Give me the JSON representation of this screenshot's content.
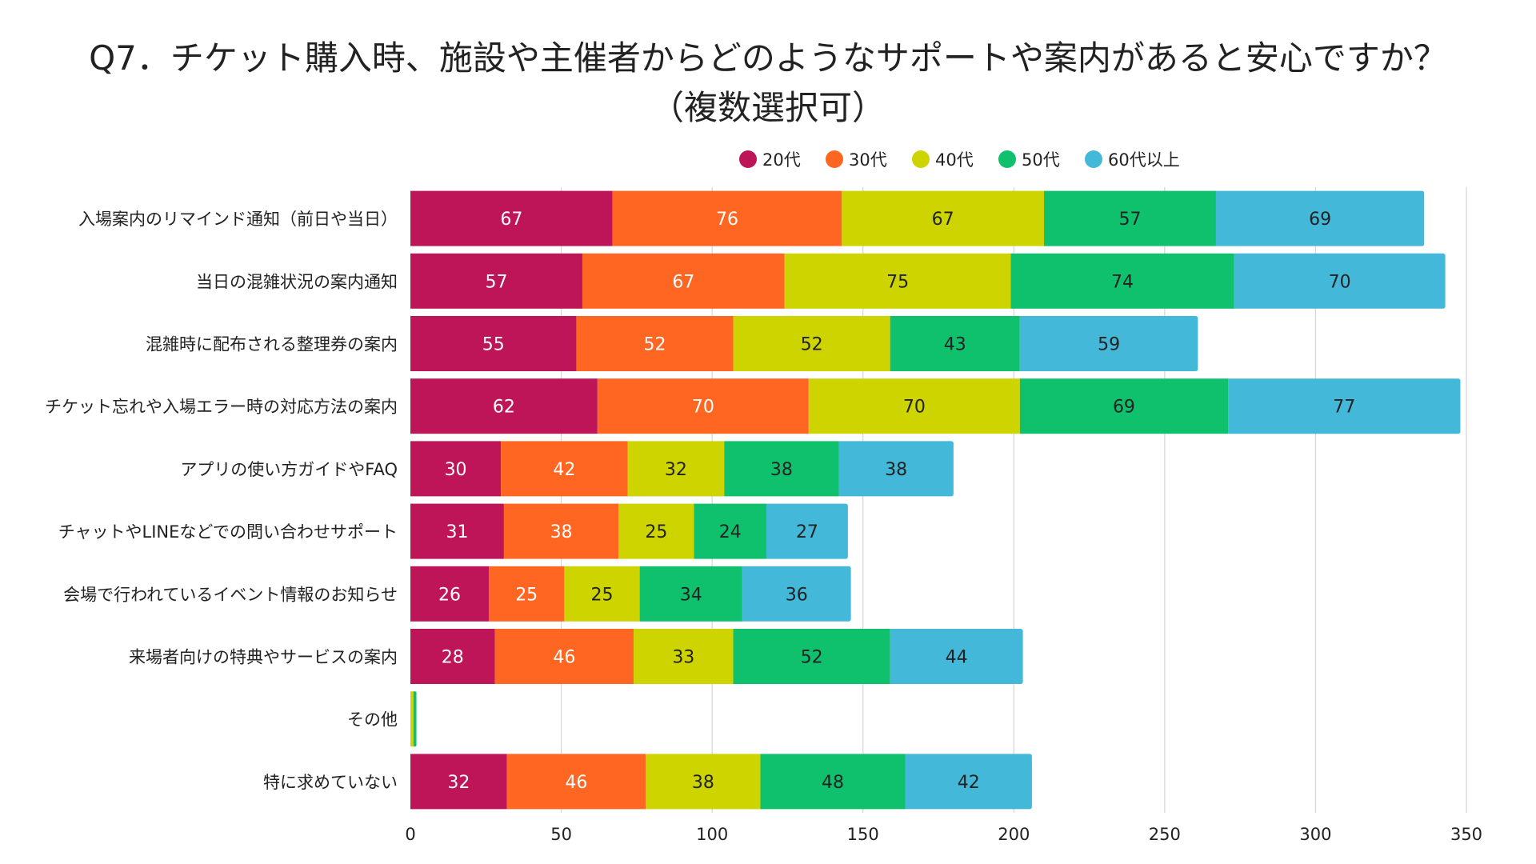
{
  "chart_data": {
    "type": "bar",
    "orientation": "horizontal",
    "stacked": true,
    "title_line1": "Q7．チケット購入時、施設や主催者からどのようなサポートや案内があると安心ですか？",
    "title_line2": "（複数選択可）",
    "xlabel": "",
    "ylabel": "",
    "xlim": [
      0,
      350
    ],
    "xticks": [
      0,
      50,
      100,
      150,
      200,
      250,
      300,
      350
    ],
    "grid": true,
    "legend_position": "top",
    "categories": [
      "入場案内のリマインド通知（前日や当日）",
      "当日の混雑状況の案内通知",
      "混雑時に配布される整理券の案内",
      "チケット忘れや入場エラー時の対応方法の案内",
      "アプリの使い方ガイドやFAQ",
      "チャットやLINEなどでの問い合わせサポート",
      "会場で行われているイベント情報のお知らせ",
      "来場者向けの特典やサービスの案内",
      "その他",
      "特に求めていない"
    ],
    "series": [
      {
        "name": "20代",
        "color": "#be1558",
        "label_color": "#ffffff",
        "values": [
          67,
          57,
          55,
          62,
          30,
          31,
          26,
          28,
          0,
          32
        ]
      },
      {
        "name": "30代",
        "color": "#fe6621",
        "label_color": "#ffffff",
        "values": [
          76,
          67,
          52,
          70,
          42,
          38,
          25,
          46,
          0,
          46
        ]
      },
      {
        "name": "40代",
        "color": "#cdd400",
        "label_color": "#222222",
        "values": [
          67,
          75,
          52,
          70,
          32,
          25,
          25,
          33,
          1,
          38
        ]
      },
      {
        "name": "50代",
        "color": "#0fc16d",
        "label_color": "#222222",
        "values": [
          57,
          74,
          43,
          69,
          38,
          24,
          34,
          52,
          1,
          48
        ]
      },
      {
        "name": "60代以上",
        "color": "#43b8d8",
        "label_color": "#222222",
        "values": [
          69,
          70,
          59,
          77,
          38,
          27,
          36,
          44,
          0,
          42
        ]
      }
    ]
  }
}
